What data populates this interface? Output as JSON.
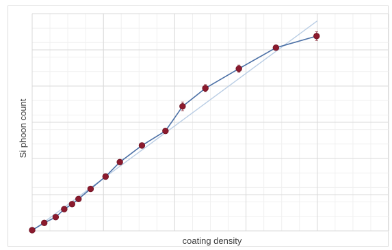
{
  "chart_data": {
    "type": "line",
    "title": "",
    "xlabel": "coating density",
    "ylabel": "Si phoon count",
    "xlim": [
      0,
      5
    ],
    "ylim": [
      0,
      3
    ],
    "grid": true,
    "series": [
      {
        "style": "line-with-markers",
        "color": "#4a6fa5",
        "marker_color": "#8b1a2e",
        "points": [
          {
            "x": 0.0,
            "y": 0.01
          },
          {
            "x": 0.17,
            "y": 0.11
          },
          {
            "x": 0.33,
            "y": 0.19
          },
          {
            "x": 0.45,
            "y": 0.3
          },
          {
            "x": 0.56,
            "y": 0.37
          },
          {
            "x": 0.65,
            "y": 0.44
          },
          {
            "x": 0.82,
            "y": 0.58
          },
          {
            "x": 1.03,
            "y": 0.75
          },
          {
            "x": 1.23,
            "y": 0.95
          },
          {
            "x": 1.54,
            "y": 1.18
          },
          {
            "x": 1.87,
            "y": 1.38
          },
          {
            "x": 2.11,
            "y": 1.72
          },
          {
            "x": 2.43,
            "y": 1.97
          },
          {
            "x": 2.9,
            "y": 2.24
          },
          {
            "x": 3.42,
            "y": 2.53
          },
          {
            "x": 3.99,
            "y": 2.69
          }
        ],
        "error": [
          0.02,
          0.02,
          0.02,
          0.02,
          0.02,
          0.02,
          0.02,
          0.02,
          0.03,
          0.03,
          0.03,
          0.06,
          0.05,
          0.05,
          0.03,
          0.06
        ]
      },
      {
        "style": "trendline",
        "color": "#b9cde4",
        "points": [
          {
            "x": 0.0,
            "y": 0.0
          },
          {
            "x": 4.0,
            "y": 2.9
          }
        ]
      }
    ]
  }
}
